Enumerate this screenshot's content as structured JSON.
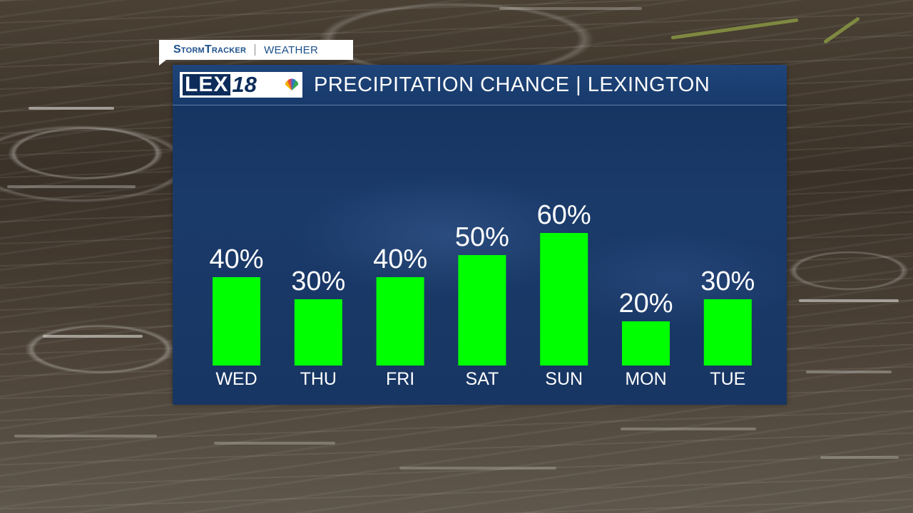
{
  "brand": {
    "stormtracker_label": "StormTracker",
    "weather_label": "WEATHER",
    "station_logo_text": "LEX18"
  },
  "header": {
    "title": "PRECIPITATION CHANCE | LEXINGTON"
  },
  "colors": {
    "bar": "#00ff00",
    "panel": "#183663",
    "header": "#1e4479",
    "brand_text": "#1b4f8a"
  },
  "chart_data": {
    "type": "bar",
    "categories": [
      "WED",
      "THU",
      "FRI",
      "SAT",
      "SUN",
      "MON",
      "TUE"
    ],
    "values": [
      40,
      30,
      40,
      50,
      60,
      20,
      30
    ],
    "value_labels": [
      "40%",
      "30%",
      "40%",
      "50%",
      "60%",
      "20%",
      "30%"
    ],
    "title": "PRECIPITATION CHANCE | LEXINGTON",
    "unit": "%",
    "ylim": [
      0,
      100
    ],
    "grid": false,
    "legend": "none"
  }
}
